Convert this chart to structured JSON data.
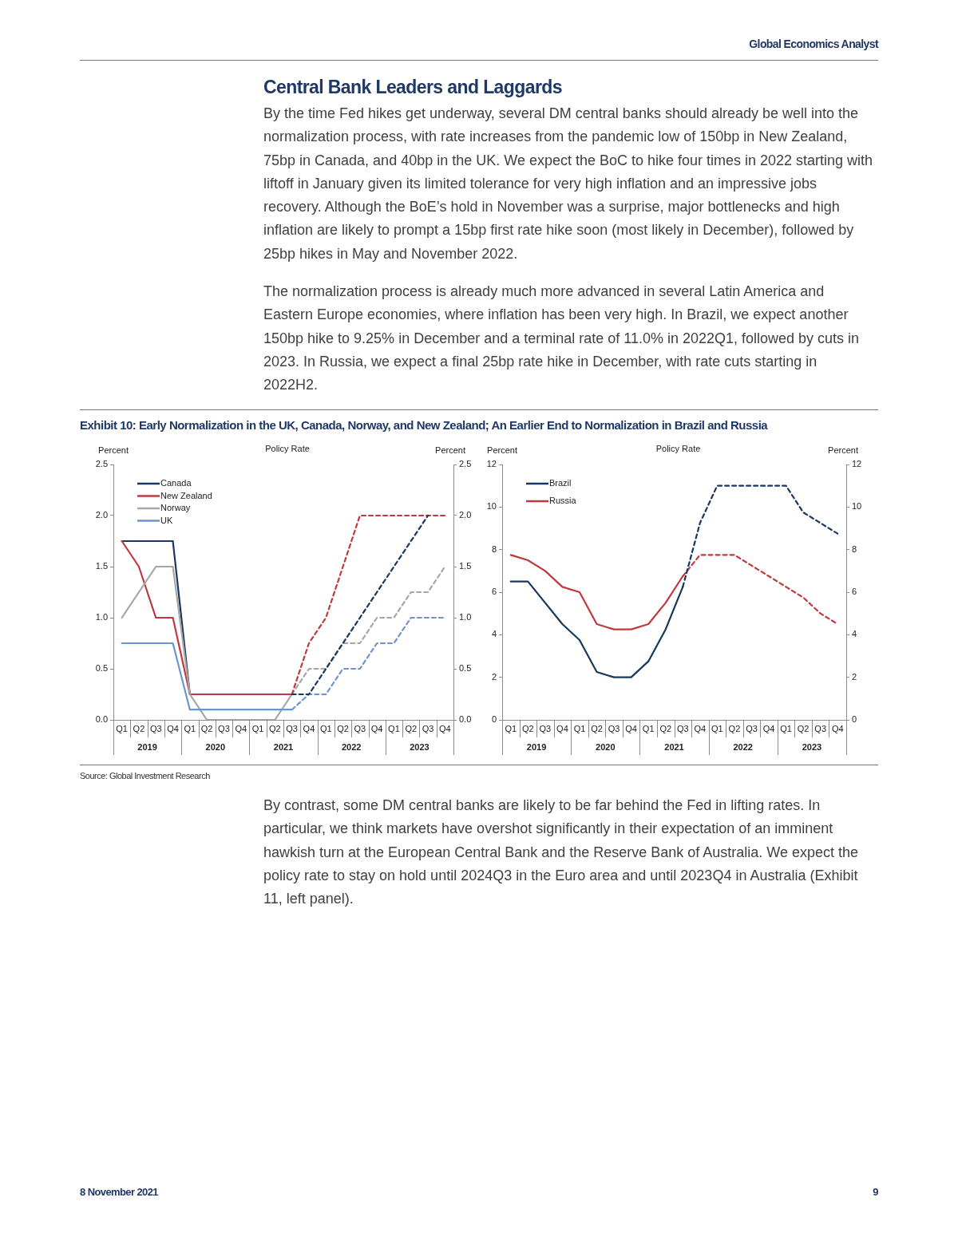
{
  "chart_data": [
    {
      "type": "line",
      "title": "Exhibit 10: Early Normalization in the UK, Canada, Norway, and New Zealand; An Earlier End to Normalization in Brazil and Russia",
      "subtitle": "Policy Rate",
      "ylabel": "Percent",
      "y2label": "Percent",
      "categories": [
        "Q1",
        "Q2",
        "Q3",
        "Q4",
        "Q1",
        "Q2",
        "Q3",
        "Q4",
        "Q1",
        "Q2",
        "Q3",
        "Q4",
        "Q1",
        "Q2",
        "Q3",
        "Q4",
        "Q1",
        "Q2",
        "Q3",
        "Q4"
      ],
      "ylim": [
        0,
        2.5
      ],
      "yticks": [
        {
          "value": 0,
          "label": "0.0"
        },
        {
          "value": 0.5,
          "label": "0.5"
        },
        {
          "value": 1,
          "label": "1.0"
        },
        {
          "value": 1.5,
          "label": "1.5"
        },
        {
          "value": 2,
          "label": "2.0"
        },
        {
          "value": 2.5,
          "label": "2.5"
        }
      ],
      "y2lim": [
        0,
        2.5
      ],
      "y2ticks": [
        {
          "value": 0,
          "label": "0.0"
        },
        {
          "value": 0.5,
          "label": "0.5"
        },
        {
          "value": 1,
          "label": "1.0"
        },
        {
          "value": 1.5,
          "label": "1.5"
        },
        {
          "value": 2,
          "label": "2.0"
        },
        {
          "value": 2.5,
          "label": "2.5"
        }
      ],
      "grid": false,
      "legend": "top left",
      "marker": "none",
      "series": [
        {
          "name": "Canada",
          "color": "#17375e",
          "values": [
            1.75,
            1.75,
            1.75,
            1.75,
            0.25,
            null,
            null,
            null,
            null,
            null,
            null,
            null,
            null,
            null,
            null,
            null,
            null,
            null,
            null,
            null
          ]
        },
        {
          "name": "New Zealand",
          "color": "#be3a3e",
          "values": [
            1.75,
            1.5,
            1.0,
            1.0,
            0.25,
            0.25,
            0.25,
            0.25,
            0.25,
            0.25,
            0.25,
            null,
            null,
            null,
            null,
            null,
            null,
            null,
            null,
            null
          ]
        },
        {
          "name": "Norway",
          "color": "#a6a6a6",
          "values": [
            1.0,
            1.25,
            1.5,
            1.5,
            0.25,
            0,
            0,
            0,
            0,
            0,
            0.25,
            null,
            null,
            null,
            null,
            null,
            null,
            null,
            null,
            null
          ]
        },
        {
          "name": "UK",
          "color": "#6d95cd",
          "values": [
            0.75,
            0.75,
            0.75,
            0.75,
            0.1,
            0.1,
            0.1,
            0.1,
            0.1,
            0.1,
            0.1,
            null,
            null,
            null,
            null,
            null,
            null,
            null,
            null,
            null
          ]
        },
        {
          "color": "#17375e",
          "line_style": "dashed",
          "values": [
            null,
            null,
            null,
            null,
            null,
            null,
            null,
            null,
            null,
            null,
            0.25,
            0.25,
            0.5,
            0.75,
            1.0,
            1.25,
            1.5,
            1.75,
            2.0,
            null
          ]
        },
        {
          "color": "#be3a3e",
          "line_style": "dashed",
          "values": [
            null,
            null,
            null,
            null,
            null,
            null,
            null,
            null,
            null,
            null,
            0.25,
            0.75,
            1.0,
            1.5,
            2.0,
            2.0,
            2.0,
            2.0,
            2.0,
            2.0
          ]
        },
        {
          "color": "#a6a6a6",
          "line_style": "dashed",
          "values": [
            null,
            null,
            null,
            null,
            null,
            null,
            null,
            null,
            null,
            null,
            0.25,
            0.5,
            0.5,
            0.75,
            0.75,
            1.0,
            1.0,
            1.25,
            1.25,
            1.5
          ]
        },
        {
          "color": "#6d95cd",
          "line_style": "dashed",
          "values": [
            null,
            null,
            null,
            null,
            null,
            null,
            null,
            null,
            null,
            null,
            0.1,
            0.25,
            0.25,
            0.5,
            0.5,
            0.75,
            0.75,
            1.0,
            1.0,
            1.0
          ]
        }
      ],
      "annotations": [
        "2019",
        "2020",
        "2021",
        "2022",
        "2023",
        "Global Economics Analyst",
        "Central Bank Leaders and Laggards",
        "By the time Fed hikes get underway, several DM central banks should already be well into the normalization process, with rate increases from the pandemic low of 150bp in New Zealand, 75bp in Canada, and 40bp in the UK.  We expect the BoC to hike four times in 2022 starting with liftoff in January given its limited tolerance for very high inflation and an impressive jobs recovery.  Although the BoE’s hold in November was a surprise, major bottlenecks and high inflation are likely to prompt a 15bp first rate hike soon (most likely in December), followed by 25bp hikes in May and November 2022.",
        "The normalization process is already much more advanced in several Latin America and Eastern Europe economies, where inflation has been very high.  In Brazil, we expect another 150bp hike to 9.25% in December and a terminal rate of 11.0% in 2022Q1, followed by cuts in 2023.  In Russia, we expect a final 25bp rate hike in December, with rate cuts starting in 2022H2."
      ]
    },
    {
      "type": "line",
      "subtitle": "Policy Rate",
      "ylabel": "Percent",
      "y2label": "Percent",
      "categories": [
        "Q1",
        "Q2",
        "Q3",
        "Q4",
        "Q1",
        "Q2",
        "Q3",
        "Q4",
        "Q1",
        "Q2",
        "Q3",
        "Q4",
        "Q1",
        "Q2",
        "Q3",
        "Q4",
        "Q1",
        "Q2",
        "Q3",
        "Q4"
      ],
      "ylim": [
        0,
        12
      ],
      "yticks": [
        0,
        2,
        4,
        6,
        8,
        10,
        12
      ],
      "y2lim": [
        0,
        12
      ],
      "y2ticks": [
        0,
        2,
        4,
        6,
        8,
        10,
        12
      ],
      "grid": false,
      "legend": "top left",
      "marker": "none",
      "series": [
        {
          "name": "Brazil",
          "color": "#17375e",
          "values": [
            6.5,
            6.5,
            5.5,
            4.5,
            3.75,
            2.25,
            2.0,
            2.0,
            2.75,
            4.25,
            6.25,
            null,
            null,
            null,
            null,
            null,
            null,
            null,
            null,
            null
          ]
        },
        {
          "name": "Russia",
          "color": "#be3a3e",
          "values": [
            7.75,
            7.5,
            7.0,
            6.25,
            6.0,
            4.5,
            4.25,
            4.25,
            4.5,
            5.5,
            6.75,
            null,
            null,
            null,
            null,
            null,
            null,
            null,
            null,
            null
          ]
        },
        {
          "color": "#17375e",
          "line_style": "dashed",
          "values": [
            null,
            null,
            null,
            null,
            null,
            null,
            null,
            null,
            null,
            null,
            6.25,
            9.25,
            11.0,
            11.0,
            11.0,
            11.0,
            11.0,
            9.75,
            9.25,
            8.75
          ]
        },
        {
          "color": "#be3a3e",
          "line_style": "dashed",
          "values": [
            null,
            null,
            null,
            null,
            null,
            null,
            null,
            null,
            null,
            null,
            6.75,
            7.75,
            7.75,
            7.75,
            7.25,
            6.75,
            6.25,
            5.75,
            5.0,
            4.5
          ]
        }
      ],
      "annotations": [
        "2019",
        "2020",
        "2021",
        "2022",
        "2023",
        "Source: Global Investment Research",
        "By contrast, some DM central banks are likely to be far behind the Fed in lifting rates.  In particular, we think markets have overshot significantly in their expectation of an imminent hawkish turn at the European Central Bank and the Reserve Bank of Australia.  We expect the policy rate to stay on hold until 2024Q3 in the Euro area and until 2023Q4 in Australia (Exhibit 11, left panel).",
        "8 November 2021",
        "9"
      ]
    }
  ]
}
